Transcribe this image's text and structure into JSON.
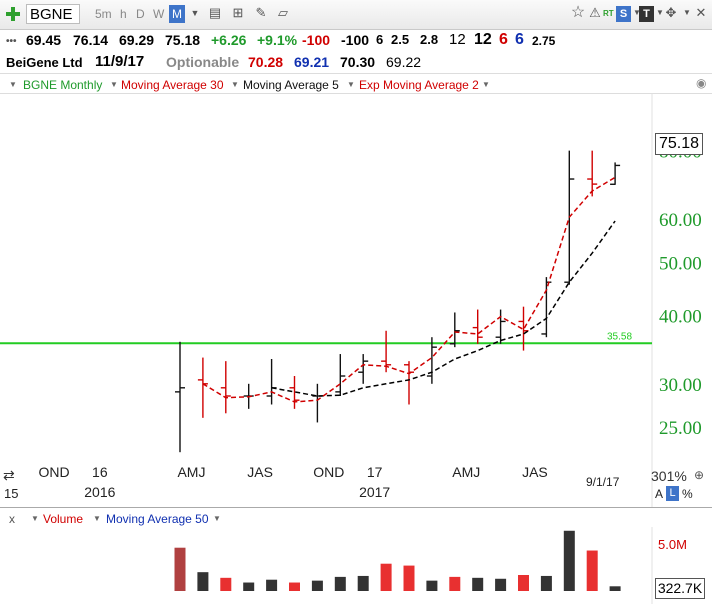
{
  "toolbar": {
    "symbol": "BGNE",
    "intervals": [
      "5m",
      "h",
      "D",
      "W",
      "M"
    ],
    "active_interval": "M",
    "rt_label": "RT",
    "s_label": "S",
    "t_label": "T"
  },
  "quote": {
    "last": "69.45",
    "high": "76.14",
    "low": "69.29",
    "close": "75.18",
    "change": "+6.26",
    "change_pct": "+9.1%",
    "v1": "-100",
    "v2": "-100",
    "v3": "6",
    "v4": "2.5",
    "v5": "2.8",
    "v6": "12",
    "v7": "12",
    "v8": "6",
    "v9": "6",
    "v10": "2.75",
    "company": "BeiGene Ltd",
    "date": "11/9/17",
    "optionable": "Optionable",
    "q1": "70.28",
    "q2": "69.21",
    "q3": "70.30",
    "q4": "69.22",
    "colors": {
      "up": "#1f9a2b",
      "down": "#d00000",
      "blue": "#1030b0"
    }
  },
  "legend": {
    "main": "BGNE Monthly",
    "ma30": "Moving Average 30",
    "ma5": "Moving Average 5",
    "ema2": "Exp Moving Average 2"
  },
  "volume_legend": {
    "x": "x",
    "volume": "Volume",
    "ma50": "Moving Average 50"
  },
  "readouts": {
    "price_box": "75.18",
    "volume_box": "322.7K",
    "scale_pct": "301%",
    "scale_a": "A",
    "scale_l": "L",
    "scale_pct_sym": "%",
    "last_date": "9/1/17",
    "left_edge": "15"
  },
  "chart_data": {
    "type": "ohlc",
    "yscale": "log",
    "ylim": [
      21.5,
      88
    ],
    "price_ticks": [
      25,
      30,
      40,
      50,
      60,
      80
    ],
    "price_tick_labels": [
      "25.00",
      "30.00",
      "40.00",
      "50.00",
      "60.00",
      "80.00"
    ],
    "x_tick_labels": [
      {
        "label": "JAS",
        "bar": -8.5
      },
      {
        "label": "OND",
        "bar": -5.5
      },
      {
        "label": "16",
        "bar": -3.5
      },
      {
        "label": "AMJ",
        "bar": 0.5
      },
      {
        "label": "JAS",
        "bar": 3.5
      },
      {
        "label": "OND",
        "bar": 6.5
      },
      {
        "label": "17",
        "bar": 8.5
      },
      {
        "label": "AMJ",
        "bar": 12.5
      },
      {
        "label": "JAS",
        "bar": 15.5
      }
    ],
    "year_labels": [
      {
        "label": "2016",
        "bar": -3.5
      },
      {
        "label": "2017",
        "bar": 8.5
      }
    ],
    "horizontal_line": {
      "value": 35.58,
      "label": "35.58",
      "color": "#22cc22"
    },
    "bars": [
      {
        "o": 29.0,
        "h": 35.8,
        "l": 22.5,
        "c": 29.5
      },
      {
        "o": 30.5,
        "h": 33.5,
        "l": 26.0,
        "c": 30.0
      },
      {
        "o": 29.5,
        "h": 33.0,
        "l": 26.5,
        "c": 28.5
      },
      {
        "o": 28.5,
        "h": 30.0,
        "l": 27.0,
        "c": 28.5
      },
      {
        "o": 28.5,
        "h": 33.3,
        "l": 27.5,
        "c": 29.5
      },
      {
        "o": 29.5,
        "h": 31.0,
        "l": 27.0,
        "c": 28.0
      },
      {
        "o": 28.5,
        "h": 30.0,
        "l": 25.5,
        "c": 28.5
      },
      {
        "o": 29.0,
        "h": 34.0,
        "l": 28.5,
        "c": 31.0
      },
      {
        "o": 31.5,
        "h": 34.0,
        "l": 30.0,
        "c": 33.0
      },
      {
        "o": 33.0,
        "h": 37.5,
        "l": 31.5,
        "c": 32.5
      },
      {
        "o": 32.5,
        "h": 33.0,
        "l": 27.5,
        "c": 31.5
      },
      {
        "o": 31.0,
        "h": 36.5,
        "l": 30.0,
        "c": 35.0
      },
      {
        "o": 35.5,
        "h": 40.5,
        "l": 35.0,
        "c": 37.5
      },
      {
        "o": 38.0,
        "h": 41.0,
        "l": 35.5,
        "c": 36.5
      },
      {
        "o": 36.5,
        "h": 41.0,
        "l": 35.5,
        "c": 39.0
      },
      {
        "o": 39.0,
        "h": 41.5,
        "l": 34.5,
        "c": 37.5
      },
      {
        "o": 37.0,
        "h": 47.0,
        "l": 36.5,
        "c": 46.0
      },
      {
        "o": 46.0,
        "h": 80.0,
        "l": 45.5,
        "c": 71.0
      },
      {
        "o": 71.0,
        "h": 80.0,
        "l": 66.0,
        "c": 69.5
      },
      {
        "o": 69.45,
        "h": 76.14,
        "l": 69.29,
        "c": 75.18
      }
    ],
    "series": [
      {
        "name": "Moving Average 5",
        "color": "#000000",
        "values": [
          null,
          null,
          null,
          null,
          29.5,
          29.0,
          28.5,
          28.6,
          29.5,
          30.0,
          30.5,
          31.5,
          33.3,
          34.5,
          36.0,
          37.0,
          39.5,
          46.0,
          52.0,
          59.5
        ]
      },
      {
        "name": "Exp Moving Average 2",
        "color": "#d00000",
        "values": [
          null,
          30.0,
          28.3,
          28.4,
          29.0,
          27.8,
          28.0,
          30.0,
          32.5,
          32.3,
          31.3,
          33.5,
          37.3,
          37.0,
          39.8,
          37.7,
          44.5,
          60.5,
          67.5,
          71.5
        ]
      }
    ],
    "volume": {
      "values_m": [
        4.6,
        2.0,
        1.4,
        0.9,
        1.2,
        0.9,
        1.1,
        1.5,
        1.6,
        2.9,
        2.7,
        1.1,
        1.5,
        1.4,
        1.3,
        1.7,
        1.6,
        6.4,
        4.3,
        0.5
      ],
      "colors": [
        "#b04040",
        "#333333",
        "#e83030",
        "#333333",
        "#333333",
        "#e83030",
        "#333333",
        "#333333",
        "#333333",
        "#e83030",
        "#e83030",
        "#333333",
        "#e83030",
        "#333333",
        "#333333",
        "#e83030",
        "#333333",
        "#333333",
        "#e83030",
        "#333333"
      ],
      "ylim": [
        0,
        6.8
      ],
      "tick_label": "5.0M",
      "tick_value": 5.0
    }
  }
}
